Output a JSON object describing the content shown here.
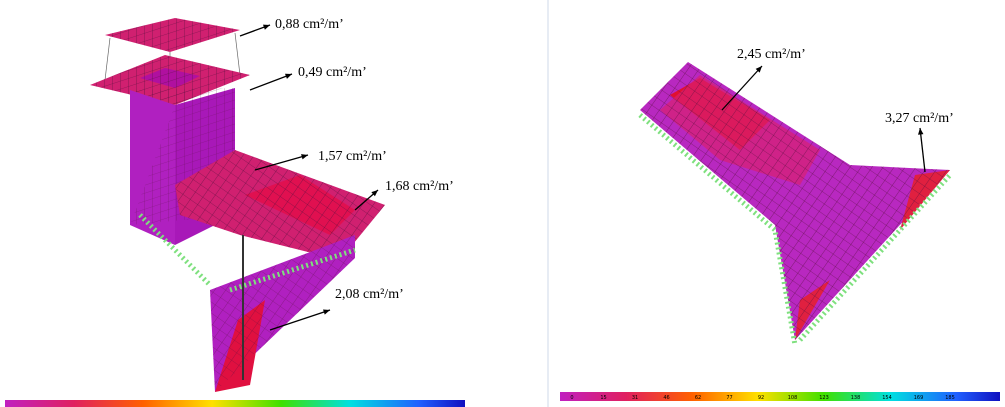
{
  "left_panel": {
    "annotations": [
      "0,88 cm²/m’",
      "0,49 cm²/m’",
      "1,57 cm²/m’",
      "1,68 cm²/m’",
      "2,08 cm²/m’"
    ]
  },
  "right_panel": {
    "annotations": [
      "2,45 cm²/m’",
      "3,27 cm²/m’"
    ],
    "colorbar_labels": [
      "0",
      "15",
      "31",
      "46",
      "62",
      "77",
      "92",
      "108",
      "123",
      "138",
      "154",
      "169",
      "185"
    ]
  }
}
